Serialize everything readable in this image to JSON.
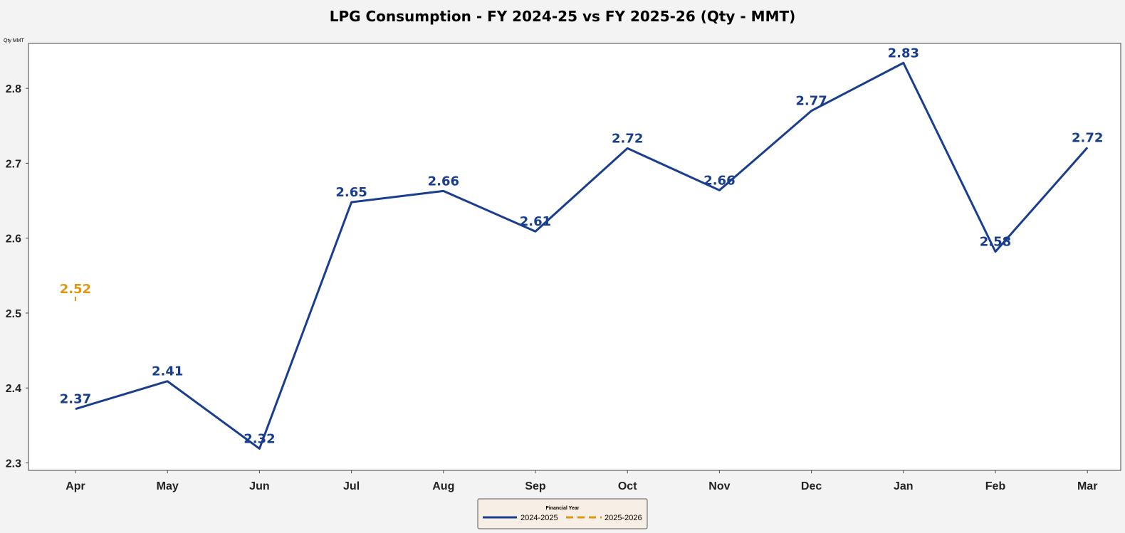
{
  "colors": {
    "series_2024_2025": "#1a3e8f",
    "series_2025_2026": "#e09712"
  },
  "chart_data": {
    "type": "line",
    "title": "LPG Consumption - FY 2024-25 vs FY 2025-26 (Qty - MMT)",
    "ylabel": "Qty MMT",
    "xlabel": "",
    "categories": [
      "Apr",
      "May",
      "Jun",
      "Jul",
      "Aug",
      "Sep",
      "Oct",
      "Nov",
      "Dec",
      "Jan",
      "Feb",
      "Mar"
    ],
    "ylim": [
      2.29,
      2.86
    ],
    "yticks": [
      "2.3",
      "2.4",
      "2.5",
      "2.6",
      "2.7",
      "2.8"
    ],
    "grid": false,
    "legend": {
      "title": "Financial Year",
      "placement": "bottom-center"
    },
    "series": [
      {
        "name": "2024-2025",
        "values": [
          2.372,
          2.409,
          2.319,
          2.648,
          2.663,
          2.609,
          2.72,
          2.664,
          2.77,
          2.834,
          2.582,
          2.721
        ],
        "labels": [
          "2.37",
          "2.41",
          "2.32",
          "2.65",
          "2.66",
          "2.61",
          "2.72",
          "2.66",
          "2.77",
          "2.83",
          "2.58",
          "2.72"
        ],
        "style": "solid"
      },
      {
        "name": "2025-2026",
        "values": [
          2.519,
          null,
          null,
          null,
          null,
          null,
          null,
          null,
          null,
          null,
          null,
          null
        ],
        "labels": [
          "2.52",
          "",
          "",
          "",
          "",
          "",
          "",
          "",
          "",
          "",
          "",
          ""
        ],
        "style": "dashed"
      }
    ]
  }
}
